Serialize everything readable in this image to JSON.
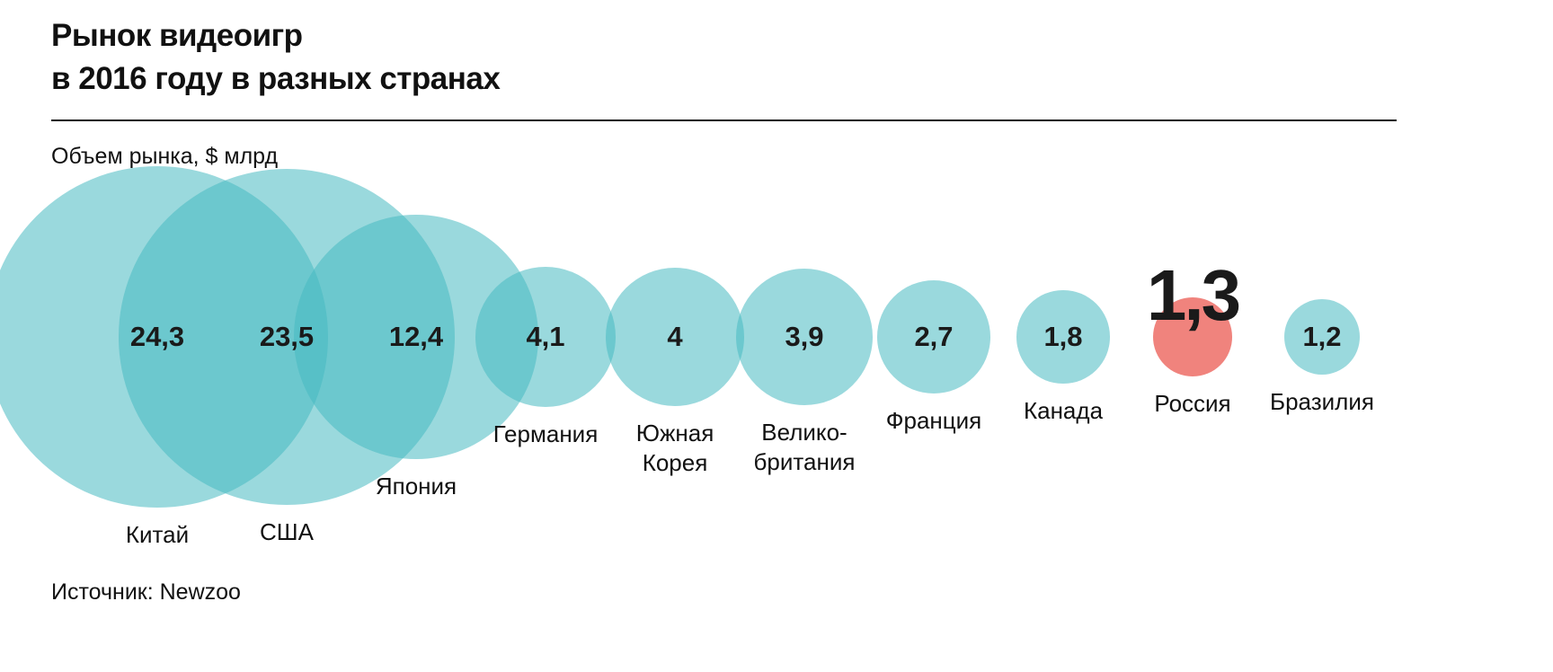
{
  "header": {
    "title": "Рынок видеоигр\nв 2016 году в разных странах",
    "unit_label": "Объем рынка, $ млрд"
  },
  "footer": {
    "source": "Источник:  Newzoo"
  },
  "colors": {
    "bubble_teal": "#47b9c1",
    "bubble_opacity": 0.55,
    "highlight_red": "#f0837d",
    "text": "#111111"
  },
  "chart_data": {
    "type": "scatter",
    "variant": "bubble-row",
    "title": "Рынок видеоигр в 2016 году в разных странах",
    "ylabel": "Объем рынка, $ млрд",
    "source": "Newzoo",
    "legend_position": "none",
    "grid": false,
    "points": [
      {
        "label": "Китай",
        "value": 24.3,
        "display_value": "24,3",
        "highlight": false
      },
      {
        "label": "США",
        "value": 23.5,
        "display_value": "23,5",
        "highlight": false
      },
      {
        "label": "Япония",
        "value": 12.4,
        "display_value": "12,4",
        "highlight": false
      },
      {
        "label": "Германия",
        "value": 4.1,
        "display_value": "4,1",
        "highlight": false
      },
      {
        "label": "Южная\nКорея",
        "value": 4,
        "display_value": "4",
        "highlight": false
      },
      {
        "label": "Велико-\nбритания",
        "value": 3.9,
        "display_value": "3,9",
        "highlight": false
      },
      {
        "label": "Франция",
        "value": 2.7,
        "display_value": "2,7",
        "highlight": false
      },
      {
        "label": "Канада",
        "value": 1.8,
        "display_value": "1,8",
        "highlight": false
      },
      {
        "label": "Россия",
        "value": 1.3,
        "display_value": "1,3",
        "highlight": true
      },
      {
        "label": "Бразилия",
        "value": 1.2,
        "display_value": "1,2",
        "highlight": false
      }
    ]
  }
}
